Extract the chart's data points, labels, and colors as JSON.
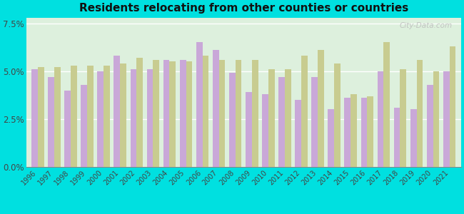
{
  "title": "Residents relocating from other counties or countries",
  "years": [
    1996,
    1997,
    1998,
    1999,
    2000,
    2001,
    2002,
    2003,
    2004,
    2005,
    2006,
    2007,
    2008,
    2009,
    2010,
    2011,
    2012,
    2013,
    2014,
    2015,
    2016,
    2017,
    2018,
    2019,
    2020,
    2021
  ],
  "grant_county": [
    5.1,
    4.7,
    4.0,
    4.3,
    5.0,
    5.8,
    5.1,
    5.1,
    5.6,
    5.6,
    6.5,
    6.1,
    4.9,
    3.9,
    3.8,
    4.7,
    3.5,
    4.7,
    3.0,
    3.6,
    3.6,
    5.0,
    3.1,
    3.0,
    4.3,
    5.0
  ],
  "west_virginia": [
    5.2,
    5.2,
    5.3,
    5.3,
    5.3,
    5.4,
    5.7,
    5.6,
    5.5,
    5.5,
    5.8,
    5.6,
    5.6,
    5.6,
    5.1,
    5.1,
    5.8,
    6.1,
    5.4,
    3.8,
    3.7,
    6.5,
    5.1,
    5.6,
    5.0,
    6.3
  ],
  "grant_color": "#c9a8d8",
  "wv_color": "#c8cc90",
  "background_color": "#00e0e0",
  "plot_bg": "#ddf0dd",
  "yticks": [
    0.0,
    2.5,
    5.0,
    7.5
  ],
  "ylim": [
    0,
    7.8
  ],
  "watermark": "City-Data.com"
}
